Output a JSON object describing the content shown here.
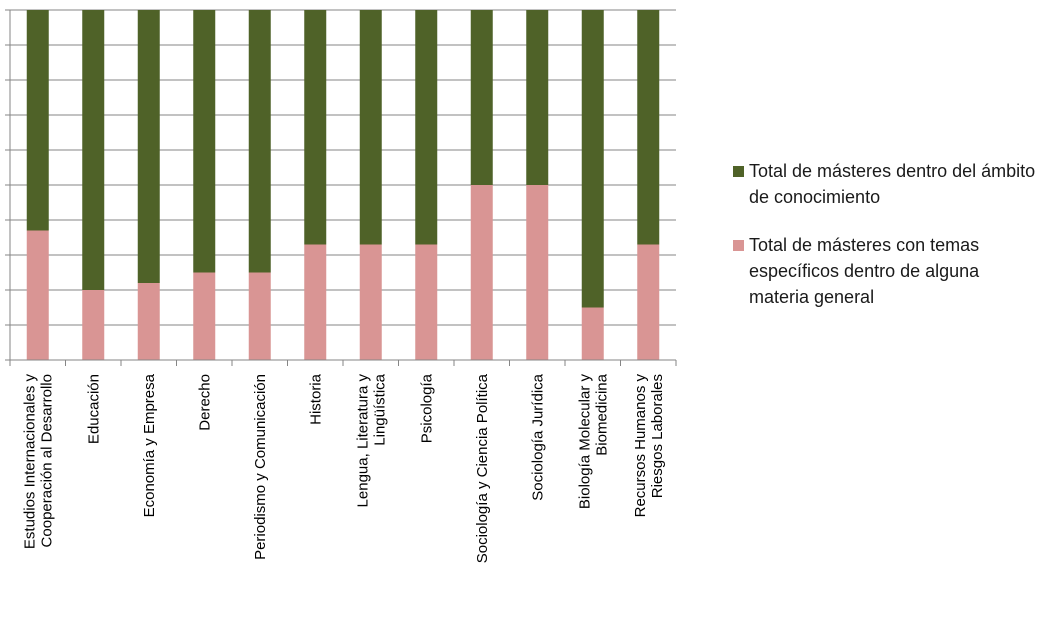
{
  "chart_data": {
    "type": "bar",
    "stacked": true,
    "percent_stacked": true,
    "categories": [
      [
        "Estudios Internacionales y",
        "Cooperación al Desarrollo"
      ],
      [
        "Educación"
      ],
      [
        "Economía y Empresa"
      ],
      [
        "Derecho"
      ],
      [
        "Periodismo y Comunicación"
      ],
      [
        "Historia"
      ],
      [
        "Lengua, Literatura y",
        "Lingüística"
      ],
      [
        "Psicología"
      ],
      [
        "Sociología y Ciencia Política"
      ],
      [
        "Sociología Jurídica"
      ],
      [
        "Biología Molecular y",
        "Biomedicina"
      ],
      [
        "Recursos Humanos y",
        "Riesgos Laborales"
      ]
    ],
    "series": [
      {
        "name": "Total de másteres con temas específicos dentro de alguna materia general",
        "color": "#d99594",
        "values": [
          0.37,
          0.2,
          0.22,
          0.25,
          0.25,
          0.33,
          0.33,
          0.33,
          0.5,
          0.5,
          0.15,
          0.33
        ]
      },
      {
        "name": "Total de másteres dentro del ámbito de conocimiento",
        "color": "#4f6228",
        "values": [
          0.63,
          0.8,
          0.78,
          0.75,
          0.75,
          0.67,
          0.67,
          0.67,
          0.5,
          0.5,
          0.85,
          0.67
        ]
      }
    ],
    "ylim": [
      0,
      1
    ],
    "grid": true,
    "y_tick_count": 10,
    "y_tick_labels_shown": false,
    "legend_position": "right"
  },
  "legend": {
    "items": [
      {
        "label": "Total de másteres dentro del ámbito de conocimiento",
        "color": "#4f6228"
      },
      {
        "label": "Total de másteres con temas específicos dentro de alguna materia general",
        "color": "#d99594"
      }
    ]
  }
}
